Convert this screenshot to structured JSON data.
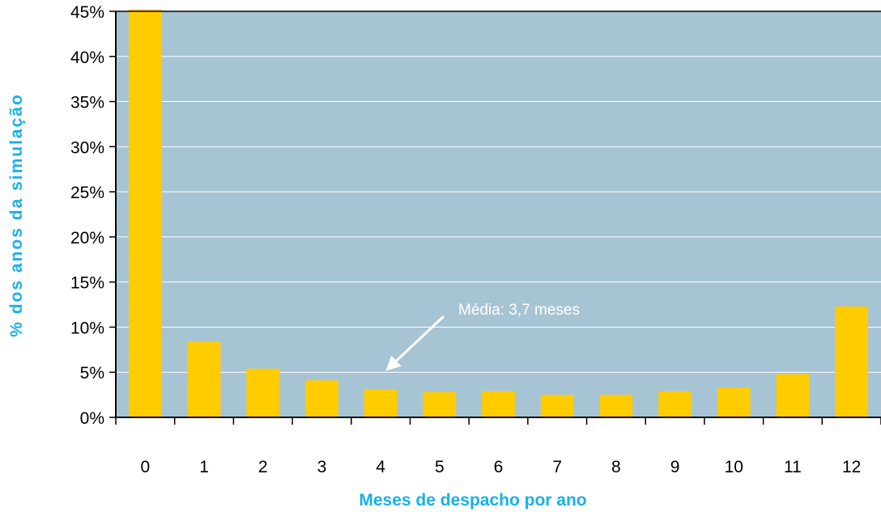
{
  "chart_data": {
    "type": "bar",
    "title": "",
    "xlabel": "Meses de despacho por ano",
    "ylabel": "% dos anos da simulação",
    "categories": [
      "0",
      "1",
      "2",
      "3",
      "4",
      "5",
      "6",
      "7",
      "8",
      "9",
      "10",
      "11",
      "12"
    ],
    "values": [
      45.2,
      8.4,
      5.4,
      4.1,
      3.1,
      2.8,
      2.9,
      2.5,
      2.5,
      2.9,
      3.3,
      4.8,
      12.3
    ],
    "ylim": [
      0,
      45
    ],
    "yticks": [
      "0%",
      "5%",
      "10%",
      "15%",
      "20%",
      "25%",
      "30%",
      "35%",
      "40%",
      "45%"
    ],
    "grid": true,
    "colors": {
      "bar": "#ffcc00",
      "plot_background": "#a7c4d4",
      "axis_title": "#1ab0e8",
      "gridline": "#ffffff"
    },
    "annotation": {
      "text": "Média: 3,7 meses",
      "points_to_x": 4.0
    }
  }
}
